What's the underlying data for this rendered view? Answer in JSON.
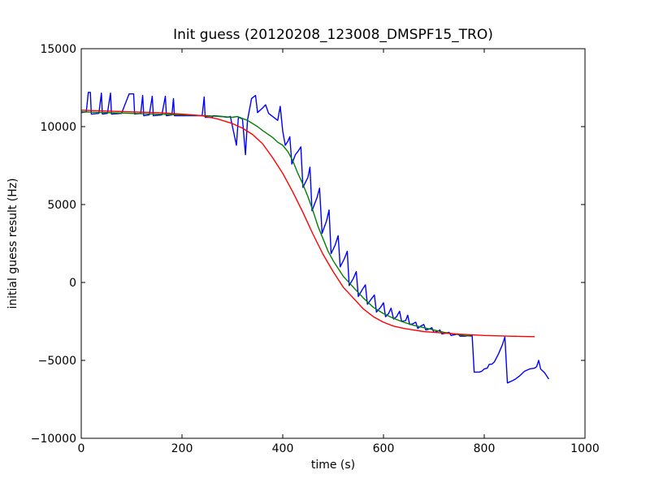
{
  "chart_data": {
    "type": "line",
    "title": "Init guess (20120208_123008_DMSPF15_TRO)",
    "xlabel": "time (s)",
    "ylabel": "initial guess result (Hz)",
    "xlim": [
      0,
      1000
    ],
    "ylim": [
      -10000,
      15000
    ],
    "x_ticks": [
      0,
      200,
      400,
      600,
      800,
      1000
    ],
    "y_ticks": [
      -10000,
      -5000,
      0,
      5000,
      10000,
      15000
    ],
    "x_tick_labels": [
      "0",
      "200",
      "400",
      "600",
      "800",
      "1000"
    ],
    "y_tick_labels": [
      "−10000",
      "−5000",
      "0",
      "5000",
      "10000",
      "15000"
    ],
    "grid": false,
    "series": [
      {
        "color": "#0000ff",
        "points": [
          [
            0,
            10900
          ],
          [
            10,
            10950
          ],
          [
            14,
            12200
          ],
          [
            18,
            12200
          ],
          [
            20,
            10800
          ],
          [
            35,
            10850
          ],
          [
            40,
            12150
          ],
          [
            42,
            10800
          ],
          [
            52,
            10850
          ],
          [
            58,
            12150
          ],
          [
            60,
            10800
          ],
          [
            80,
            10850
          ],
          [
            95,
            12100
          ],
          [
            104,
            12100
          ],
          [
            106,
            10800
          ],
          [
            118,
            10850
          ],
          [
            122,
            12000
          ],
          [
            124,
            10700
          ],
          [
            135,
            10750
          ],
          [
            141,
            11950
          ],
          [
            143,
            10700
          ],
          [
            160,
            10750
          ],
          [
            167,
            11950
          ],
          [
            169,
            10700
          ],
          [
            180,
            10750
          ],
          [
            183,
            11800
          ],
          [
            185,
            10700
          ],
          [
            240,
            10700
          ],
          [
            244,
            11900
          ],
          [
            246,
            10600
          ],
          [
            260,
            10600
          ],
          [
            262,
            10700
          ],
          [
            280,
            10650
          ],
          [
            290,
            10600
          ],
          [
            296,
            10650
          ],
          [
            308,
            8800
          ],
          [
            312,
            10600
          ],
          [
            320,
            10500
          ],
          [
            326,
            8200
          ],
          [
            330,
            10400
          ],
          [
            338,
            11800
          ],
          [
            346,
            12000
          ],
          [
            350,
            10900
          ],
          [
            360,
            11200
          ],
          [
            366,
            11400
          ],
          [
            372,
            10850
          ],
          [
            390,
            10400
          ],
          [
            395,
            11300
          ],
          [
            400,
            9700
          ],
          [
            405,
            8800
          ],
          [
            410,
            9050
          ],
          [
            414,
            9350
          ],
          [
            418,
            7600
          ],
          [
            425,
            8200
          ],
          [
            430,
            8400
          ],
          [
            436,
            8700
          ],
          [
            440,
            6100
          ],
          [
            450,
            6750
          ],
          [
            454,
            7400
          ],
          [
            458,
            4600
          ],
          [
            468,
            5450
          ],
          [
            473,
            6050
          ],
          [
            478,
            3150
          ],
          [
            487,
            3950
          ],
          [
            492,
            4650
          ],
          [
            496,
            1850
          ],
          [
            504,
            2400
          ],
          [
            510,
            3000
          ],
          [
            514,
            1000
          ],
          [
            522,
            1500
          ],
          [
            528,
            2000
          ],
          [
            532,
            -200
          ],
          [
            540,
            250
          ],
          [
            546,
            700
          ],
          [
            550,
            -900
          ],
          [
            558,
            -450
          ],
          [
            564,
            -150
          ],
          [
            568,
            -1400
          ],
          [
            576,
            -1050
          ],
          [
            582,
            -800
          ],
          [
            586,
            -1900
          ],
          [
            594,
            -1600
          ],
          [
            600,
            -1300
          ],
          [
            604,
            -2200
          ],
          [
            610,
            -2000
          ],
          [
            615,
            -1650
          ],
          [
            620,
            -2350
          ],
          [
            626,
            -2200
          ],
          [
            632,
            -1850
          ],
          [
            636,
            -2500
          ],
          [
            644,
            -2450
          ],
          [
            648,
            -2100
          ],
          [
            652,
            -2700
          ],
          [
            658,
            -2650
          ],
          [
            664,
            -2550
          ],
          [
            668,
            -2950
          ],
          [
            674,
            -2800
          ],
          [
            680,
            -2700
          ],
          [
            684,
            -3050
          ],
          [
            690,
            -3000
          ],
          [
            696,
            -2900
          ],
          [
            700,
            -3200
          ],
          [
            706,
            -3150
          ],
          [
            712,
            -3050
          ],
          [
            716,
            -3300
          ],
          [
            724,
            -3250
          ],
          [
            730,
            -3200
          ],
          [
            734,
            -3400
          ],
          [
            742,
            -3350
          ],
          [
            748,
            -3300
          ],
          [
            752,
            -3450
          ],
          [
            762,
            -3450
          ],
          [
            772,
            -3400
          ],
          [
            776,
            -3400
          ],
          [
            780,
            -5750
          ],
          [
            790,
            -5750
          ],
          [
            795,
            -5700
          ],
          [
            800,
            -5550
          ],
          [
            806,
            -5500
          ],
          [
            810,
            -5250
          ],
          [
            815,
            -5250
          ],
          [
            820,
            -5100
          ],
          [
            828,
            -4600
          ],
          [
            836,
            -4000
          ],
          [
            841,
            -3500
          ],
          [
            846,
            -6450
          ],
          [
            856,
            -6300
          ],
          [
            862,
            -6200
          ],
          [
            870,
            -6000
          ],
          [
            880,
            -5700
          ],
          [
            890,
            -5550
          ],
          [
            900,
            -5500
          ],
          [
            904,
            -5400
          ],
          [
            908,
            -5000
          ],
          [
            912,
            -5550
          ],
          [
            920,
            -5800
          ],
          [
            928,
            -6200
          ]
        ]
      },
      {
        "color": "#008000",
        "points": [
          [
            0,
            10950
          ],
          [
            100,
            10850
          ],
          [
            200,
            10750
          ],
          [
            250,
            10700
          ],
          [
            300,
            10600
          ],
          [
            310,
            10650
          ],
          [
            330,
            10400
          ],
          [
            350,
            10000
          ],
          [
            360,
            9750
          ],
          [
            380,
            9300
          ],
          [
            390,
            9000
          ],
          [
            400,
            8800
          ],
          [
            410,
            8400
          ],
          [
            420,
            7800
          ],
          [
            430,
            7000
          ],
          [
            440,
            6300
          ],
          [
            450,
            5500
          ],
          [
            460,
            4600
          ],
          [
            470,
            3600
          ],
          [
            480,
            2800
          ],
          [
            490,
            2000
          ],
          [
            500,
            1400
          ],
          [
            520,
            400
          ],
          [
            540,
            -300
          ],
          [
            560,
            -1000
          ],
          [
            580,
            -1600
          ],
          [
            600,
            -2000
          ],
          [
            620,
            -2300
          ],
          [
            640,
            -2550
          ],
          [
            660,
            -2750
          ],
          [
            680,
            -2900
          ],
          [
            700,
            -3050
          ],
          [
            720,
            -3200
          ],
          [
            740,
            -3300
          ],
          [
            760,
            -3400
          ],
          [
            775,
            -3450
          ]
        ]
      },
      {
        "color": "#ff0000",
        "points": [
          [
            0,
            11050
          ],
          [
            50,
            11000
          ],
          [
            100,
            10950
          ],
          [
            150,
            10900
          ],
          [
            200,
            10800
          ],
          [
            240,
            10700
          ],
          [
            270,
            10500
          ],
          [
            300,
            10200
          ],
          [
            320,
            9900
          ],
          [
            340,
            9500
          ],
          [
            360,
            8900
          ],
          [
            380,
            8000
          ],
          [
            400,
            7000
          ],
          [
            420,
            5800
          ],
          [
            440,
            4500
          ],
          [
            460,
            3100
          ],
          [
            480,
            1800
          ],
          [
            500,
            700
          ],
          [
            520,
            -300
          ],
          [
            540,
            -1000
          ],
          [
            560,
            -1700
          ],
          [
            580,
            -2200
          ],
          [
            600,
            -2550
          ],
          [
            620,
            -2800
          ],
          [
            640,
            -2950
          ],
          [
            660,
            -3050
          ],
          [
            680,
            -3150
          ],
          [
            700,
            -3200
          ],
          [
            750,
            -3320
          ],
          [
            800,
            -3400
          ],
          [
            850,
            -3450
          ],
          [
            900,
            -3480
          ]
        ]
      }
    ]
  }
}
